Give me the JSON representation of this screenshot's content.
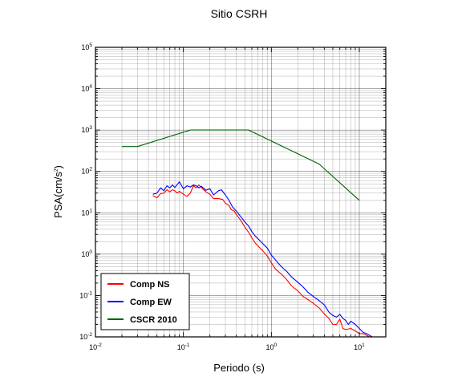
{
  "chart_data": {
    "type": "line",
    "title": "Sitio CSRH",
    "xlabel": "Periodo (s)",
    "ylabel": "PSA(cm/s",
    "ylabel_sup": "2",
    "ylabel_close": ")",
    "xscale": "log",
    "yscale": "log",
    "xlim": [
      0.01,
      20
    ],
    "ylim": [
      0.01,
      100000
    ],
    "grid": true,
    "legend_position": "bottom-left",
    "x_ticks": [
      {
        "base": "10",
        "exp": "-2"
      },
      {
        "base": "10",
        "exp": "-1"
      },
      {
        "base": "10",
        "exp": "0"
      },
      {
        "base": "10",
        "exp": "1"
      }
    ],
    "y_ticks": [
      {
        "base": "10",
        "exp": "-2"
      },
      {
        "base": "10",
        "exp": "-1"
      },
      {
        "base": "10",
        "exp": "0"
      },
      {
        "base": "10",
        "exp": "1"
      },
      {
        "base": "10",
        "exp": "2"
      },
      {
        "base": "10",
        "exp": "3"
      },
      {
        "base": "10",
        "exp": "4"
      },
      {
        "base": "10",
        "exp": "5"
      }
    ],
    "series": [
      {
        "name": "Comp NS",
        "color": "#ff0000",
        "points": [
          [
            0.045,
            26
          ],
          [
            0.05,
            23
          ],
          [
            0.055,
            29
          ],
          [
            0.06,
            30
          ],
          [
            0.065,
            36
          ],
          [
            0.07,
            32
          ],
          [
            0.075,
            36
          ],
          [
            0.08,
            34
          ],
          [
            0.085,
            30
          ],
          [
            0.09,
            33
          ],
          [
            0.1,
            28
          ],
          [
            0.11,
            25
          ],
          [
            0.12,
            30
          ],
          [
            0.13,
            45
          ],
          [
            0.14,
            40
          ],
          [
            0.15,
            47
          ],
          [
            0.16,
            41
          ],
          [
            0.18,
            32
          ],
          [
            0.2,
            28
          ],
          [
            0.22,
            22
          ],
          [
            0.25,
            22
          ],
          [
            0.28,
            21
          ],
          [
            0.3,
            17
          ],
          [
            0.33,
            15
          ],
          [
            0.35,
            12
          ],
          [
            0.38,
            11
          ],
          [
            0.4,
            9
          ],
          [
            0.45,
            6.5
          ],
          [
            0.5,
            4.5
          ],
          [
            0.55,
            3.4
          ],
          [
            0.6,
            2.5
          ],
          [
            0.65,
            1.9
          ],
          [
            0.7,
            1.6
          ],
          [
            0.8,
            1.2
          ],
          [
            0.9,
            0.9
          ],
          [
            1,
            0.62
          ],
          [
            1.1,
            0.45
          ],
          [
            1.2,
            0.38
          ],
          [
            1.3,
            0.33
          ],
          [
            1.5,
            0.24
          ],
          [
            1.7,
            0.17
          ],
          [
            2,
            0.13
          ],
          [
            2.3,
            0.095
          ],
          [
            2.6,
            0.08
          ],
          [
            3,
            0.065
          ],
          [
            3.5,
            0.05
          ],
          [
            4,
            0.036
          ],
          [
            4.5,
            0.028
          ],
          [
            5,
            0.02
          ],
          [
            5.5,
            0.02
          ],
          [
            6,
            0.027
          ],
          [
            6.5,
            0.016
          ],
          [
            7,
            0.015
          ],
          [
            8,
            0.016
          ],
          [
            9,
            0.014
          ],
          [
            10,
            0.012
          ],
          [
            11,
            0.012
          ],
          [
            12,
            0.011
          ],
          [
            13,
            0.01
          ],
          [
            14,
            0.01
          ]
        ]
      },
      {
        "name": "Comp EW",
        "color": "#0000ff",
        "points": [
          [
            0.045,
            28
          ],
          [
            0.05,
            30
          ],
          [
            0.055,
            40
          ],
          [
            0.06,
            34
          ],
          [
            0.065,
            45
          ],
          [
            0.07,
            40
          ],
          [
            0.075,
            47
          ],
          [
            0.08,
            41
          ],
          [
            0.085,
            48
          ],
          [
            0.09,
            56
          ],
          [
            0.1,
            38
          ],
          [
            0.11,
            45
          ],
          [
            0.12,
            42
          ],
          [
            0.13,
            47
          ],
          [
            0.14,
            45
          ],
          [
            0.15,
            40
          ],
          [
            0.16,
            44
          ],
          [
            0.18,
            35
          ],
          [
            0.2,
            38
          ],
          [
            0.22,
            27
          ],
          [
            0.25,
            34
          ],
          [
            0.27,
            36
          ],
          [
            0.3,
            27
          ],
          [
            0.33,
            20
          ],
          [
            0.36,
            14
          ],
          [
            0.4,
            11
          ],
          [
            0.45,
            8
          ],
          [
            0.5,
            6
          ],
          [
            0.55,
            4.8
          ],
          [
            0.6,
            3.5
          ],
          [
            0.65,
            2.8
          ],
          [
            0.7,
            2.4
          ],
          [
            0.8,
            1.8
          ],
          [
            0.9,
            1.4
          ],
          [
            1,
            0.95
          ],
          [
            1.1,
            0.75
          ],
          [
            1.2,
            0.6
          ],
          [
            1.3,
            0.5
          ],
          [
            1.5,
            0.38
          ],
          [
            1.7,
            0.28
          ],
          [
            2,
            0.21
          ],
          [
            2.3,
            0.16
          ],
          [
            2.6,
            0.12
          ],
          [
            3,
            0.095
          ],
          [
            3.5,
            0.075
          ],
          [
            4,
            0.06
          ],
          [
            4.5,
            0.04
          ],
          [
            5,
            0.033
          ],
          [
            5.5,
            0.03
          ],
          [
            6,
            0.035
          ],
          [
            6.5,
            0.028
          ],
          [
            7,
            0.025
          ],
          [
            7.5,
            0.02
          ],
          [
            8,
            0.024
          ],
          [
            9,
            0.02
          ],
          [
            10,
            0.016
          ],
          [
            11,
            0.013
          ],
          [
            12,
            0.012
          ],
          [
            13,
            0.011
          ],
          [
            14,
            0.01
          ]
        ]
      },
      {
        "name": "CSCR 2010",
        "color": "#006400",
        "points": [
          [
            0.02,
            400
          ],
          [
            0.03,
            400
          ],
          [
            0.12,
            1000
          ],
          [
            0.55,
            1000
          ],
          [
            3.5,
            150
          ],
          [
            10,
            20
          ]
        ]
      }
    ]
  }
}
